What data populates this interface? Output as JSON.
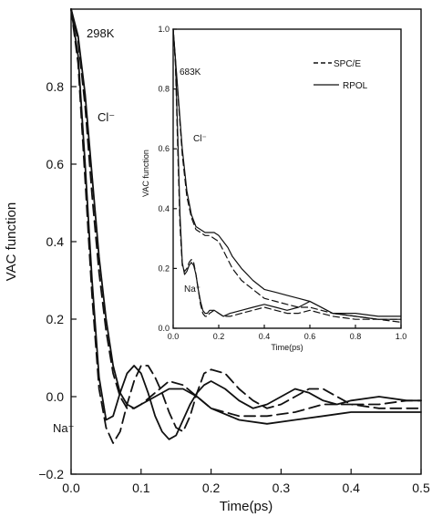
{
  "chart_data": [
    {
      "type": "line",
      "xlabel": "Time(ps)",
      "ylabel": "VAC function",
      "xlim": [
        0.0,
        0.5
      ],
      "ylim": [
        -0.2,
        1.0
      ],
      "xticks": [
        "0.0",
        "0.1",
        "0.2",
        "0.3",
        "0.4",
        "0.5"
      ],
      "yticks": [
        "−0.2",
        "0.0",
        "0.2",
        "0.4",
        "0.6",
        "0.8"
      ],
      "grid": false,
      "annotations": [
        "298K",
        "Cl⁻",
        "Na⁺"
      ],
      "series": [
        {
          "label": "Cl⁻",
          "style": "solid",
          "x": [
            0.0,
            0.01,
            0.02,
            0.03,
            0.04,
            0.05,
            0.06,
            0.07,
            0.08,
            0.09,
            0.1,
            0.12,
            0.14,
            0.16,
            0.18,
            0.2,
            0.24,
            0.28,
            0.32,
            0.36,
            0.4,
            0.44,
            0.48,
            0.5
          ],
          "y": [
            1.0,
            0.93,
            0.78,
            0.57,
            0.36,
            0.2,
            0.08,
            0.01,
            -0.02,
            -0.03,
            -0.02,
            0.0,
            0.02,
            0.02,
            0.0,
            -0.03,
            -0.06,
            -0.07,
            -0.06,
            -0.05,
            -0.04,
            -0.04,
            -0.04,
            -0.04
          ]
        },
        {
          "label": "Cl⁻",
          "style": "dashed",
          "x": [
            0.0,
            0.01,
            0.02,
            0.03,
            0.04,
            0.05,
            0.06,
            0.07,
            0.08,
            0.09,
            0.1,
            0.12,
            0.14,
            0.16,
            0.18,
            0.2,
            0.24,
            0.28,
            0.32,
            0.36,
            0.4,
            0.44,
            0.48,
            0.5
          ],
          "y": [
            1.0,
            0.92,
            0.75,
            0.52,
            0.32,
            0.17,
            0.06,
            0.0,
            -0.03,
            -0.03,
            -0.02,
            0.01,
            0.04,
            0.03,
            0.0,
            -0.03,
            -0.05,
            -0.05,
            -0.04,
            -0.02,
            -0.02,
            -0.03,
            -0.03,
            -0.03
          ]
        },
        {
          "label": "Na⁺",
          "style": "solid",
          "x": [
            0.0,
            0.01,
            0.02,
            0.03,
            0.04,
            0.05,
            0.06,
            0.07,
            0.08,
            0.09,
            0.1,
            0.11,
            0.12,
            0.13,
            0.14,
            0.15,
            0.16,
            0.17,
            0.18,
            0.19,
            0.2,
            0.22,
            0.24,
            0.26,
            0.28,
            0.3,
            0.32,
            0.34,
            0.36,
            0.38,
            0.4,
            0.44,
            0.48,
            0.5
          ],
          "y": [
            1.0,
            0.88,
            0.6,
            0.3,
            0.05,
            -0.06,
            -0.05,
            0.01,
            0.06,
            0.08,
            0.06,
            0.01,
            -0.05,
            -0.09,
            -0.11,
            -0.1,
            -0.06,
            -0.02,
            0.01,
            0.03,
            0.04,
            0.02,
            -0.01,
            -0.03,
            -0.02,
            0.0,
            0.02,
            0.01,
            -0.01,
            -0.02,
            -0.01,
            0.0,
            -0.01,
            -0.01
          ]
        },
        {
          "label": "Na⁺",
          "style": "dashed",
          "x": [
            0.0,
            0.01,
            0.02,
            0.03,
            0.04,
            0.05,
            0.06,
            0.07,
            0.08,
            0.09,
            0.1,
            0.11,
            0.12,
            0.13,
            0.14,
            0.15,
            0.16,
            0.17,
            0.18,
            0.19,
            0.2,
            0.22,
            0.24,
            0.26,
            0.28,
            0.3,
            0.32,
            0.34,
            0.36,
            0.38,
            0.4,
            0.44,
            0.48,
            0.5
          ],
          "y": [
            1.0,
            0.86,
            0.56,
            0.26,
            0.02,
            -0.08,
            -0.12,
            -0.09,
            -0.02,
            0.04,
            0.08,
            0.08,
            0.05,
            0.01,
            -0.04,
            -0.08,
            -0.09,
            -0.05,
            0.01,
            0.06,
            0.07,
            0.06,
            0.02,
            -0.01,
            -0.03,
            -0.02,
            0.0,
            0.02,
            0.02,
            0.0,
            -0.02,
            -0.02,
            -0.01,
            -0.01
          ]
        }
      ]
    },
    {
      "type": "line",
      "xlabel": "Time(ps)",
      "ylabel": "VAC function",
      "xlim": [
        0.0,
        1.0
      ],
      "ylim": [
        0.0,
        1.0
      ],
      "xticks": [
        "0.0",
        "0.2",
        "0.4",
        "0.6",
        "0.8",
        "1.0"
      ],
      "yticks": [
        "0.0",
        "0.2",
        "0.4",
        "0.6",
        "0.8",
        "1.0"
      ],
      "grid": false,
      "legend": {
        "position": "top-right",
        "entries": [
          {
            "label": "SPC/E",
            "style": "dashed"
          },
          {
            "label": "RPOL",
            "style": "solid"
          }
        ]
      },
      "annotations": [
        "683K",
        "Cl⁻",
        "Na⁺"
      ],
      "series": [
        {
          "label": "Cl⁻",
          "style": "solid",
          "x": [
            0.0,
            0.02,
            0.04,
            0.06,
            0.08,
            0.1,
            0.12,
            0.14,
            0.16,
            0.18,
            0.2,
            0.22,
            0.24,
            0.26,
            0.3,
            0.35,
            0.4,
            0.45,
            0.5,
            0.55,
            0.6,
            0.65,
            0.7,
            0.8,
            0.9,
            1.0
          ],
          "y": [
            1.0,
            0.8,
            0.6,
            0.46,
            0.38,
            0.34,
            0.33,
            0.32,
            0.32,
            0.32,
            0.31,
            0.29,
            0.27,
            0.24,
            0.2,
            0.16,
            0.13,
            0.12,
            0.11,
            0.1,
            0.09,
            0.07,
            0.05,
            0.05,
            0.04,
            0.04
          ]
        },
        {
          "label": "Cl⁻",
          "style": "dashed",
          "x": [
            0.0,
            0.02,
            0.04,
            0.06,
            0.08,
            0.1,
            0.12,
            0.14,
            0.16,
            0.18,
            0.2,
            0.22,
            0.24,
            0.26,
            0.3,
            0.35,
            0.4,
            0.45,
            0.5,
            0.55,
            0.6,
            0.65,
            0.7,
            0.8,
            0.9,
            1.0
          ],
          "y": [
            1.0,
            0.79,
            0.58,
            0.44,
            0.37,
            0.33,
            0.32,
            0.31,
            0.31,
            0.3,
            0.29,
            0.26,
            0.23,
            0.2,
            0.16,
            0.13,
            0.1,
            0.09,
            0.08,
            0.07,
            0.07,
            0.06,
            0.05,
            0.04,
            0.03,
            0.03
          ]
        },
        {
          "label": "Na⁺",
          "style": "solid",
          "x": [
            0.0,
            0.01,
            0.02,
            0.03,
            0.04,
            0.05,
            0.06,
            0.07,
            0.08,
            0.09,
            0.1,
            0.11,
            0.12,
            0.13,
            0.14,
            0.15,
            0.16,
            0.18,
            0.2,
            0.22,
            0.25,
            0.3,
            0.35,
            0.4,
            0.45,
            0.5,
            0.55,
            0.6,
            0.65,
            0.7,
            0.8,
            0.9,
            1.0
          ],
          "y": [
            1.0,
            0.9,
            0.65,
            0.38,
            0.22,
            0.18,
            0.19,
            0.21,
            0.22,
            0.21,
            0.18,
            0.13,
            0.09,
            0.06,
            0.05,
            0.05,
            0.06,
            0.06,
            0.05,
            0.04,
            0.05,
            0.06,
            0.07,
            0.08,
            0.07,
            0.06,
            0.07,
            0.09,
            0.07,
            0.05,
            0.04,
            0.03,
            0.03
          ]
        },
        {
          "label": "Na⁺",
          "style": "dashed",
          "x": [
            0.0,
            0.01,
            0.02,
            0.03,
            0.04,
            0.05,
            0.06,
            0.07,
            0.08,
            0.09,
            0.1,
            0.11,
            0.12,
            0.13,
            0.14,
            0.15,
            0.16,
            0.18,
            0.2,
            0.22,
            0.25,
            0.3,
            0.35,
            0.4,
            0.45,
            0.5,
            0.55,
            0.6,
            0.65,
            0.7,
            0.8,
            0.9,
            1.0
          ],
          "y": [
            1.0,
            0.88,
            0.6,
            0.34,
            0.21,
            0.19,
            0.2,
            0.22,
            0.23,
            0.22,
            0.18,
            0.13,
            0.08,
            0.05,
            0.04,
            0.04,
            0.05,
            0.06,
            0.05,
            0.04,
            0.04,
            0.05,
            0.06,
            0.07,
            0.06,
            0.05,
            0.05,
            0.06,
            0.05,
            0.04,
            0.03,
            0.03,
            0.02
          ]
        }
      ]
    }
  ]
}
